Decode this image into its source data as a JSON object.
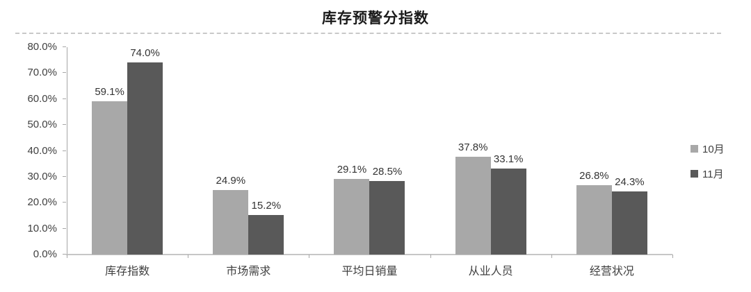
{
  "title": "库存预警分指数",
  "chart_data": {
    "type": "bar",
    "title": "库存预警分指数",
    "categories": [
      "库存指数",
      "市场需求",
      "平均日销量",
      "从业人员",
      "经营状况"
    ],
    "series": [
      {
        "name": "10月",
        "color": "#a8a8a8",
        "values": [
          59.1,
          24.9,
          29.1,
          37.8,
          26.8
        ]
      },
      {
        "name": "11月",
        "color": "#595959",
        "values": [
          74.0,
          15.2,
          28.5,
          33.1,
          24.3
        ]
      }
    ],
    "xlabel": "",
    "ylabel": "",
    "ylim": [
      0,
      80
    ],
    "ytick_step": 10,
    "ytick_labels": [
      "0.0%",
      "10.0%",
      "20.0%",
      "30.0%",
      "40.0%",
      "50.0%",
      "60.0%",
      "70.0%",
      "80.0%"
    ],
    "value_suffix": "%",
    "grid": false,
    "data_labels": true,
    "legend_position": "right"
  },
  "colors": {
    "axis_line": "#a6a6a6",
    "baseline": "#c6c6c6",
    "divider": "#c8c8c8",
    "label_text": "#333333",
    "axis_text": "#404040",
    "title_text": "#1a1a1a"
  }
}
